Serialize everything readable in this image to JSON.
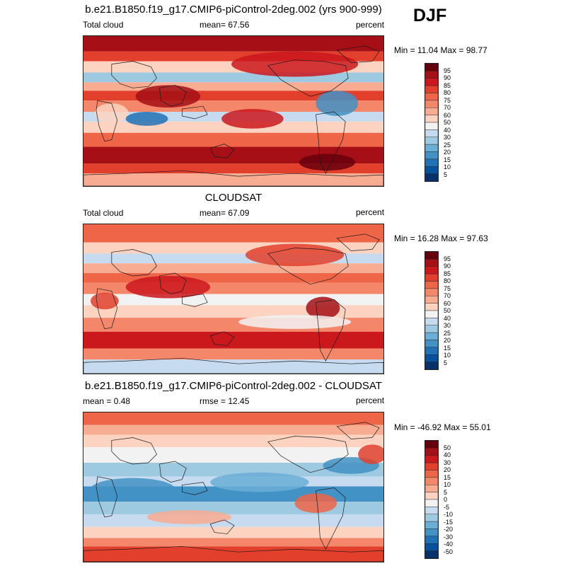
{
  "season": "DJF",
  "panels": [
    {
      "id": "model",
      "title": "b.e21.B1850.f19_g17.CMIP6-piControl-2deg.002 (yrs 900-999)",
      "left_label": "Total cloud",
      "center_label": "mean=  67.56",
      "right_label": "percent",
      "minmax": "Min =  11.04 Max =  98.77",
      "colorbar_labels": [
        "95",
        "90",
        "85",
        "80",
        "75",
        "70",
        "60",
        "50",
        "40",
        "30",
        "25",
        "20",
        "15",
        "10",
        "5"
      ]
    },
    {
      "id": "obs",
      "title": "CLOUDSAT",
      "left_label": "Total cloud",
      "center_label": "mean=  67.09",
      "right_label": "percent",
      "minmax": "Min =  16.28 Max =  97.63",
      "colorbar_labels": [
        "95",
        "90",
        "85",
        "80",
        "75",
        "70",
        "60",
        "50",
        "40",
        "30",
        "25",
        "20",
        "15",
        "10",
        "5"
      ]
    },
    {
      "id": "diff",
      "title": "b.e21.B1850.f19_g17.CMIP6-piControl-2deg.002 - CLOUDSAT",
      "left_label": "mean =   0.48",
      "center_label": "rmse =  12.45",
      "right_label": "percent",
      "minmax": "Min = -46.92 Max =  55.01",
      "colorbar_labels": [
        "50",
        "40",
        "30",
        "20",
        "15",
        "10",
        "5",
        "0",
        "-5",
        "-10",
        "-15",
        "-20",
        "-30",
        "-40",
        "-50"
      ]
    }
  ],
  "colors": {
    "scale": [
      "#67000d",
      "#a50f15",
      "#cb181d",
      "#e2402c",
      "#ef6548",
      "#f4876a",
      "#f8ac92",
      "#fcd3c1",
      "#f2f2f2",
      "#c6dbef",
      "#9ecae1",
      "#6baed6",
      "#4292c6",
      "#2171b5",
      "#08519c",
      "#08306b"
    ]
  }
}
